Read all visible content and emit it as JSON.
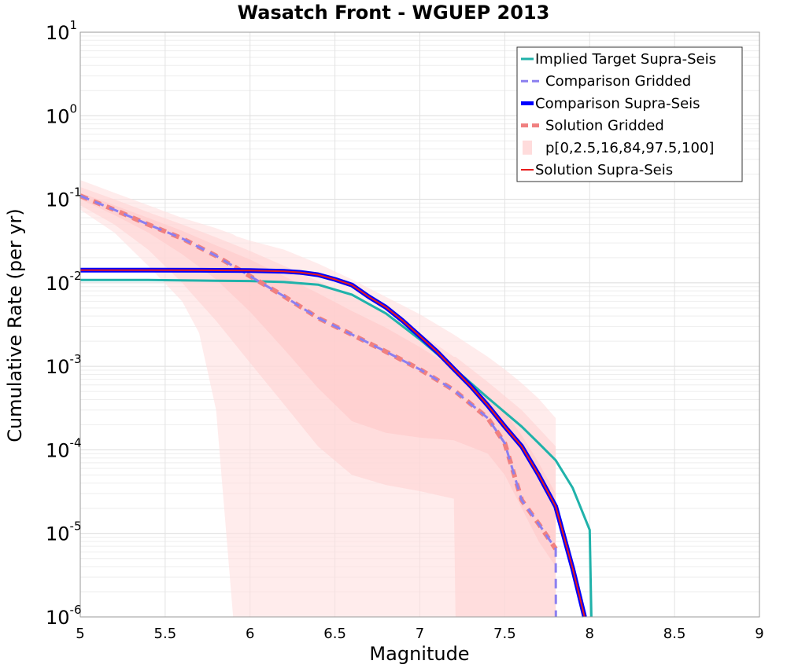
{
  "chart_data": {
    "type": "line",
    "title": "Wasatch Front - WGUEP 2013",
    "xlabel": "Magnitude",
    "ylabel": "Cumulative Rate (per yr)",
    "xlim": [
      5,
      9
    ],
    "ylim": [
      1e-06,
      10
    ],
    "yscale": "log",
    "grid": true,
    "legend_position": "top-right",
    "x_ticks": [
      "5",
      "5.5",
      "6",
      "6.5",
      "7",
      "7.5",
      "8",
      "8.5",
      "9"
    ],
    "y_ticks": [
      {
        "base": "10",
        "exp": "1"
      },
      {
        "base": "10",
        "exp": "0"
      },
      {
        "base": "10",
        "exp": "-1"
      },
      {
        "base": "10",
        "exp": "-2"
      },
      {
        "base": "10",
        "exp": "-3"
      },
      {
        "base": "10",
        "exp": "-4"
      },
      {
        "base": "10",
        "exp": "-5"
      },
      {
        "base": "10",
        "exp": "-6"
      }
    ],
    "bands": [
      {
        "name": "p[0,2.5,16,84,97.5,100] outer (0-100)",
        "color": "#ffe0e0",
        "opacity": 0.6,
        "x": [
          5.0,
          5.2,
          5.4,
          5.6,
          5.7,
          5.8,
          5.9,
          5.92,
          6.0,
          6.2,
          6.4,
          6.6,
          6.8,
          7.0,
          7.2,
          7.4,
          7.5,
          7.6,
          7.7,
          7.8
        ],
        "upper": [
          0.17,
          0.12,
          0.085,
          0.06,
          0.052,
          0.045,
          0.038,
          0.036,
          0.032,
          0.025,
          0.017,
          0.011,
          0.0068,
          0.0042,
          0.0024,
          0.0013,
          0.00092,
          0.00063,
          0.00041,
          0.00024
        ],
        "lower": [
          0.075,
          0.04,
          0.016,
          0.006,
          0.0025,
          0.0003,
          1e-06,
          1e-06,
          1e-06,
          1e-06,
          1e-06,
          1e-06,
          1e-06,
          1e-06,
          1e-06,
          1e-06,
          1e-06,
          1e-06,
          1e-06,
          1e-06
        ]
      },
      {
        "name": "p[0,2.5,16,84,97.5,100] middle (2.5-97.5)",
        "color": "#ffd4d4",
        "opacity": 0.6,
        "x": [
          5.0,
          5.2,
          5.4,
          5.6,
          5.8,
          6.0,
          6.2,
          6.4,
          6.6,
          6.8,
          7.0,
          7.2,
          7.21,
          7.4,
          7.6,
          7.8
        ],
        "upper": [
          0.14,
          0.1,
          0.07,
          0.05,
          0.035,
          0.024,
          0.016,
          0.0105,
          0.0068,
          0.0043,
          0.0025,
          0.0013,
          0.0013,
          0.00065,
          0.0003,
          0.00011
        ],
        "lower": [
          0.085,
          0.05,
          0.025,
          0.01,
          0.0035,
          0.0011,
          0.00035,
          0.00011,
          5e-05,
          3.8e-05,
          3.2e-05,
          2.6e-05,
          1e-06,
          1e-06,
          1e-06,
          1e-06
        ]
      },
      {
        "name": "p[0,2.5,16,84,97.5,100] inner (16-84)",
        "color": "#ffcaca",
        "opacity": 0.6,
        "x": [
          5.0,
          5.2,
          5.4,
          5.6,
          5.8,
          6.0,
          6.2,
          6.4,
          6.6,
          6.8,
          7.0,
          7.2,
          7.4,
          7.5,
          7.6,
          7.7,
          7.8
        ],
        "upper": [
          0.12,
          0.085,
          0.06,
          0.042,
          0.028,
          0.019,
          0.012,
          0.0075,
          0.0046,
          0.0029,
          0.0017,
          0.00095,
          0.00045,
          0.00028,
          0.00015,
          7e-05,
          3e-05
        ],
        "lower": [
          0.1,
          0.065,
          0.04,
          0.022,
          0.011,
          0.0045,
          0.0016,
          0.00055,
          0.00022,
          0.00016,
          0.00014,
          0.00013,
          9e-05,
          5e-05,
          2e-05,
          8e-06,
          4e-06
        ]
      }
    ],
    "series": [
      {
        "name": "Implied Target Supra-Seis",
        "color": "#20b2aa",
        "dash": "",
        "width": 3,
        "x": [
          5.0,
          5.2,
          5.4,
          5.6,
          5.8,
          6.0,
          6.2,
          6.4,
          6.6,
          6.8,
          7.0,
          7.2,
          7.4,
          7.6,
          7.7,
          7.8,
          7.9,
          8.0,
          8.01
        ],
        "values": [
          0.0108,
          0.0108,
          0.0108,
          0.0107,
          0.0106,
          0.0105,
          0.0102,
          0.0095,
          0.0072,
          0.0043,
          0.0021,
          0.00095,
          0.00042,
          0.00019,
          0.00012,
          7.5e-05,
          3.5e-05,
          1.1e-05,
          1e-06
        ]
      },
      {
        "name": "Comparison Gridded",
        "color": "#8b7ff0",
        "dash": "12,8",
        "width": 3,
        "x": [
          5.0,
          5.2,
          5.4,
          5.6,
          5.8,
          6.0,
          6.2,
          6.4,
          6.6,
          6.8,
          7.0,
          7.2,
          7.4,
          7.5,
          7.6,
          7.7,
          7.8,
          7.801
        ],
        "values": [
          0.11,
          0.075,
          0.05,
          0.034,
          0.021,
          0.012,
          0.0069,
          0.0038,
          0.0024,
          0.0015,
          0.00092,
          0.00052,
          0.00024,
          0.00012,
          2.5e-05,
          1.3e-05,
          6.5e-06,
          1e-06
        ]
      },
      {
        "name": "Comparison Supra-Seis",
        "color": "#0000ff",
        "dash": "",
        "width": 6,
        "x": [
          5.0,
          5.4,
          5.8,
          6.0,
          6.2,
          6.3,
          6.4,
          6.5,
          6.6,
          6.7,
          6.8,
          6.9,
          7.0,
          7.1,
          7.2,
          7.3,
          7.4,
          7.5,
          7.6,
          7.7,
          7.8,
          7.9,
          7.97
        ],
        "values": [
          0.0142,
          0.0142,
          0.0141,
          0.014,
          0.0137,
          0.0133,
          0.0125,
          0.011,
          0.0094,
          0.0068,
          0.0051,
          0.0035,
          0.0023,
          0.0015,
          0.00093,
          0.00058,
          0.00034,
          0.00019,
          0.00011,
          5e-05,
          2.1e-05,
          3.8e-06,
          1e-06
        ]
      },
      {
        "name": "Solution Gridded",
        "color": "#f08080",
        "dash": "10,8",
        "width": 6,
        "x": [
          5.0,
          5.2,
          5.4,
          5.6,
          5.8,
          6.0,
          6.2,
          6.4,
          6.6,
          6.8,
          7.0,
          7.2,
          7.4,
          7.5,
          7.6,
          7.7,
          7.8
        ],
        "values": [
          0.11,
          0.075,
          0.05,
          0.034,
          0.021,
          0.012,
          0.0069,
          0.0038,
          0.0024,
          0.0015,
          0.00092,
          0.00052,
          0.00024,
          0.00012,
          2.5e-05,
          1.3e-05,
          6.5e-06
        ]
      },
      {
        "name": "p[0,2.5,16,84,97.5,100]",
        "color": "#ffdcdc",
        "legend_only": true,
        "dash": "",
        "width": 10,
        "x": [],
        "values": []
      },
      {
        "name": "Solution Supra-Seis",
        "color": "#e81b1b",
        "dash": "",
        "width": 2,
        "x": [
          5.0,
          5.4,
          5.8,
          6.0,
          6.2,
          6.3,
          6.4,
          6.5,
          6.6,
          6.7,
          6.8,
          6.9,
          7.0,
          7.1,
          7.2,
          7.3,
          7.4,
          7.5,
          7.6,
          7.7,
          7.8,
          7.9,
          7.97
        ],
        "values": [
          0.0142,
          0.0142,
          0.0141,
          0.014,
          0.0137,
          0.0133,
          0.0125,
          0.011,
          0.0094,
          0.0068,
          0.0051,
          0.0035,
          0.0023,
          0.0015,
          0.00093,
          0.00058,
          0.00034,
          0.00019,
          0.00011,
          5e-05,
          2.1e-05,
          3.8e-06,
          1e-06
        ]
      }
    ]
  }
}
